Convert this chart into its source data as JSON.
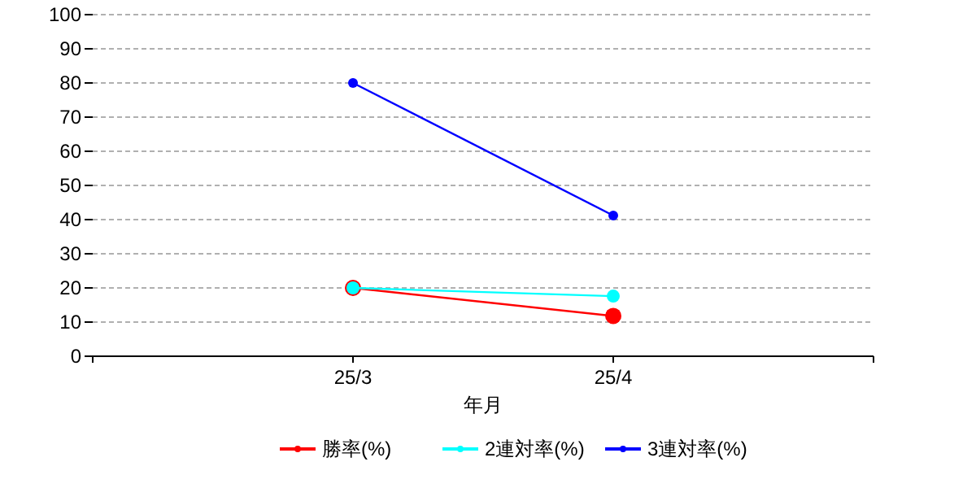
{
  "chart_data": {
    "type": "line",
    "xlabel": "年月",
    "categories": [
      "25/3",
      "25/4"
    ],
    "series": [
      {
        "name": "勝率(%)",
        "color": "#ff0000",
        "values": [
          20,
          11.8
        ]
      },
      {
        "name": "2連対率(%)",
        "color": "#00ffff",
        "values": [
          20,
          17.6
        ]
      },
      {
        "name": "3連対率(%)",
        "color": "#0000ff",
        "values": [
          80,
          41.2
        ]
      }
    ],
    "ylim": [
      0,
      100
    ],
    "yticks": [
      0,
      10,
      20,
      30,
      40,
      50,
      60,
      70,
      80,
      90,
      100
    ],
    "grid": "y",
    "legend": "bottom",
    "marker": "circle",
    "line_style": "solid"
  }
}
